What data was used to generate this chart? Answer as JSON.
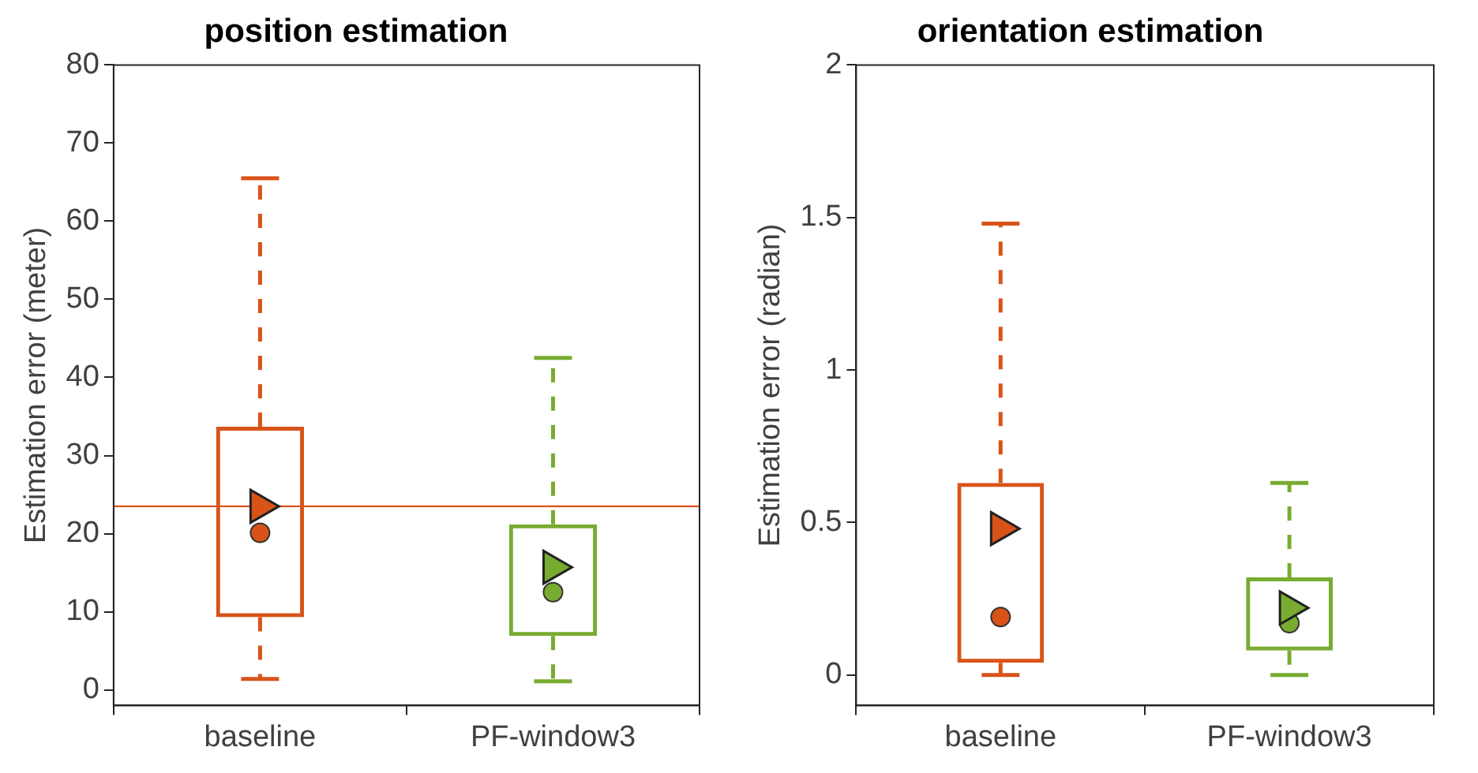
{
  "chart_data": [
    {
      "type": "box",
      "title": "position estimation",
      "ylabel": "Estimation error (meter)",
      "categories": [
        "baseline",
        "PF-window3"
      ],
      "colors": [
        "#d95319",
        "#77ac30"
      ],
      "boxes": [
        {
          "low": 1.4,
          "q1": 9.3,
          "median": 20.1,
          "q3": 33.7,
          "high": 65.5,
          "mean": 23.5
        },
        {
          "low": 1.1,
          "q1": 6.9,
          "median": 12.5,
          "q3": 21.2,
          "high": 42.5,
          "mean": 15.7
        }
      ],
      "ylim": [
        -2,
        80
      ],
      "yticks": [
        0,
        10,
        20,
        30,
        40,
        50,
        60,
        70,
        80
      ],
      "grid": false,
      "legend": false,
      "ref_lines": [
        {
          "axis": "y",
          "value": 23.5,
          "color": "#d95319"
        }
      ]
    },
    {
      "type": "box",
      "title": "orientation estimation",
      "ylabel": "Estimation error (radian)",
      "categories": [
        "baseline",
        "PF-window3"
      ],
      "colors": [
        "#d95319",
        "#77ac30"
      ],
      "boxes": [
        {
          "low": 0,
          "q1": 0.04,
          "median": 0.19,
          "q3": 0.63,
          "high": 1.48,
          "mean": 0.48
        },
        {
          "low": 0,
          "q1": 0.08,
          "median": 0.17,
          "q3": 0.32,
          "high": 0.63,
          "mean": 0.22
        }
      ],
      "ylim": [
        -0.1,
        2
      ],
      "yticks": [
        0,
        0.5,
        1,
        1.5,
        2
      ],
      "grid": false,
      "legend": false
    }
  ]
}
